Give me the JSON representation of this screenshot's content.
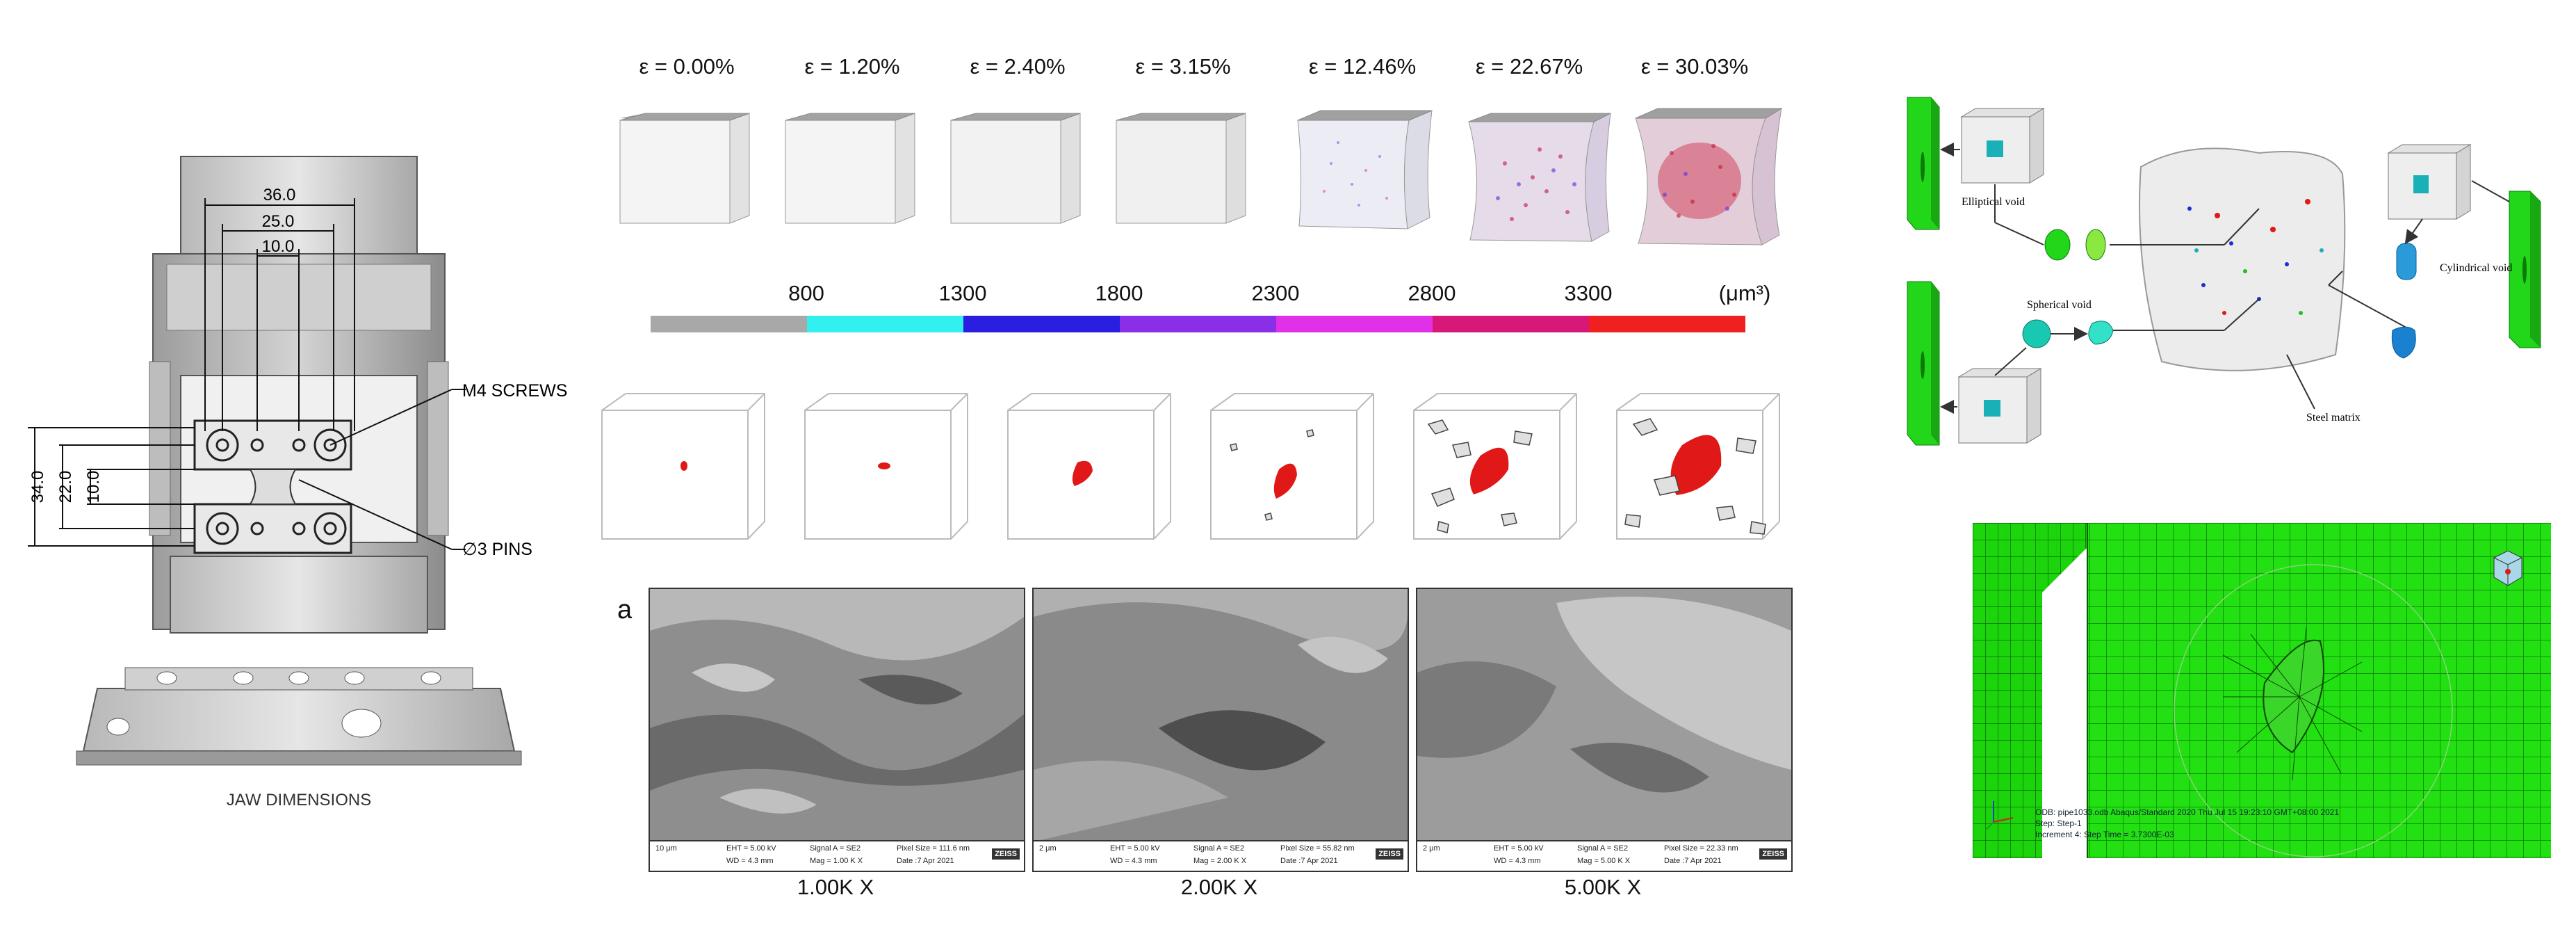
{
  "jaw": {
    "dim_36": "36.0",
    "dim_25": "25.0",
    "dim_10_top": "10.0",
    "dim_34": "34.0",
    "dim_22": "22.0",
    "dim_10_left": "10.0",
    "m4_label": "M4 SCREWS",
    "pins_label": "∅3 PINS",
    "caption": "JAW DIMENSIONS"
  },
  "strains": [
    "ε = 0.00%",
    "ε = 1.20%",
    "ε = 2.40%",
    "ε = 3.15%",
    "ε = 12.46%",
    "ε = 22.67%",
    "ε = 30.03%"
  ],
  "colorbar": {
    "ticks": [
      "800",
      "1300",
      "1800",
      "2300",
      "2800",
      "3300"
    ],
    "unit": "(μm³)",
    "colors": [
      "#a8a8a8",
      "#33f0f0",
      "#2a1ee0",
      "#8a2ee8",
      "#e030e8",
      "#d81878",
      "#f02020"
    ]
  },
  "sem": {
    "panel_label": "a",
    "images": [
      {
        "mag": "1.00K X",
        "scale": "10 μm",
        "eht": "EHT = 5.00 kV",
        "wd": "WD = 4.3 mm",
        "signal": "Signal A = SE2",
        "magtxt": "Mag = 1.00 K X",
        "pixel": "Pixel Size = 111.6 nm",
        "date": "Date :7 Apr 2021"
      },
      {
        "mag": "2.00K X",
        "scale": "2 μm",
        "eht": "EHT = 5.00 kV",
        "wd": "WD = 4.3 mm",
        "signal": "Signal A = SE2",
        "magtxt": "Mag = 2.00 K X",
        "pixel": "Pixel Size = 55.82 nm",
        "date": "Date :7 Apr 2021"
      },
      {
        "mag": "5.00K X",
        "scale": "2 μm",
        "eht": "EHT = 5.00 kV",
        "wd": "WD = 4.3 mm",
        "signal": "Signal A = SE2",
        "magtxt": "Mag = 5.00 K X",
        "pixel": "Pixel Size = 22.33 nm",
        "date": "Date :7 Apr 2021"
      }
    ],
    "brand": "ZEISS"
  },
  "voids": {
    "elliptical": "Elliptical void",
    "spherical": "Spherical void",
    "cylindrical": "Cylindrical void",
    "matrix": "Steel matrix"
  },
  "fem": {
    "line1": "ODB: pipe1033.odb    Abaqus/Standard 2020    Thu Jul 15 19:23:10 GMT+08:00 2021",
    "line2": "Step: Step-1",
    "line3": "Increment    4: Step Time =    3.7300E-03"
  }
}
